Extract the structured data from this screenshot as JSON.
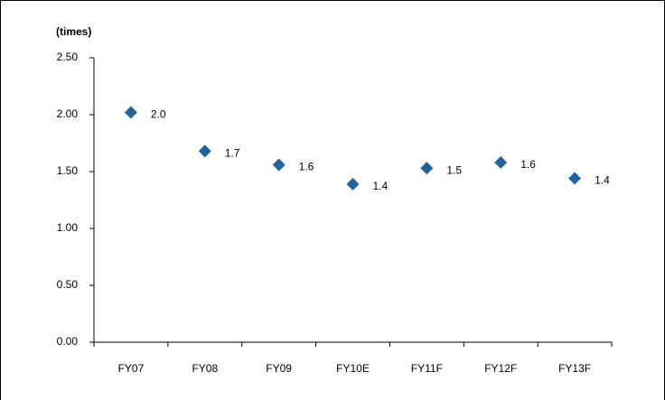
{
  "chart_data": {
    "type": "scatter",
    "y_label": "(times)",
    "categories": [
      "FY07",
      "FY08",
      "FY09",
      "FY10E",
      "FY11F",
      "FY12F",
      "FY13F"
    ],
    "values": [
      2.02,
      1.68,
      1.56,
      1.39,
      1.53,
      1.58,
      1.44
    ],
    "value_labels": [
      "2.0",
      "1.7",
      "1.6",
      "1.4",
      "1.5",
      "1.6",
      "1.4"
    ],
    "color": "#1f64a0",
    "ylim": [
      0,
      2.5
    ],
    "yticks": [
      {
        "value": 0,
        "label": "0.00"
      },
      {
        "value": 0.5,
        "label": "0.50"
      },
      {
        "value": 1,
        "label": "1.00"
      },
      {
        "value": 1.5,
        "label": "1.50"
      },
      {
        "value": 2,
        "label": "2.00"
      },
      {
        "value": 2.5,
        "label": "2.50"
      }
    ],
    "grid": false
  }
}
